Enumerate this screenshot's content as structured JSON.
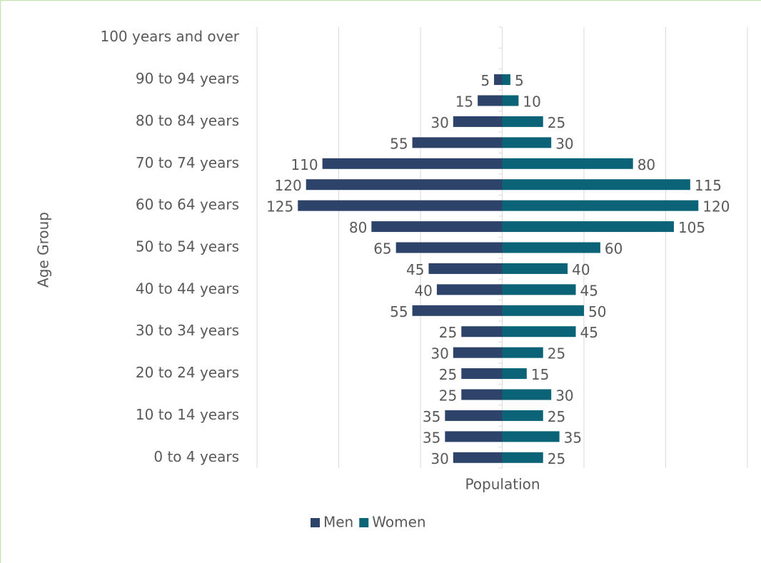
{
  "chart_data": {
    "type": "pyramid",
    "x_label": "Population",
    "y_label": "Age Group",
    "categories": [
      "0 to 4 years",
      null,
      "10 to 14 years",
      null,
      "20 to 24 years",
      null,
      "30 to 34 years",
      null,
      "40 to 44 years",
      null,
      "50 to 54 years",
      null,
      "60 to 64 years",
      null,
      "70 to 74 years",
      null,
      "80 to 84 years",
      null,
      "90 to 94 years",
      null,
      "100 years and over"
    ],
    "series": [
      {
        "name": "Men",
        "color": "#2e4369",
        "side": "left",
        "values": [
          30,
          35,
          35,
          25,
          25,
          30,
          25,
          55,
          40,
          45,
          65,
          80,
          125,
          120,
          110,
          55,
          30,
          15,
          5,
          null,
          null
        ]
      },
      {
        "name": "Women",
        "color": "#0b6378",
        "side": "right",
        "values": [
          25,
          35,
          25,
          30,
          15,
          25,
          45,
          50,
          45,
          40,
          60,
          105,
          120,
          115,
          80,
          30,
          25,
          10,
          5,
          null,
          null
        ]
      }
    ],
    "xlim": [
      -150,
      150
    ],
    "xticks": [
      -150,
      -100,
      -50,
      0,
      50,
      100,
      150
    ],
    "x_tick_labels": false,
    "grid": true,
    "legend": "bottom"
  }
}
